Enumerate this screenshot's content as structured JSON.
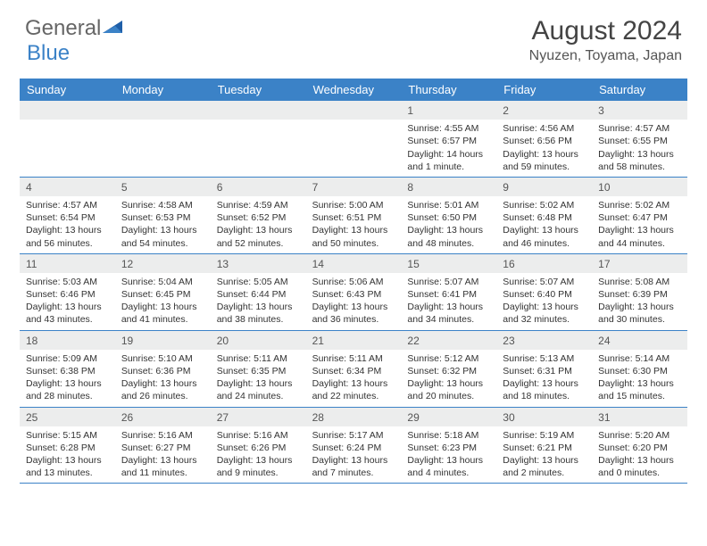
{
  "brand": {
    "part1": "General",
    "part2": "Blue"
  },
  "title": "August 2024",
  "location": "Nyuzen, Toyama, Japan",
  "colors": {
    "accent": "#3b82c7",
    "header_bg": "#3b82c7",
    "header_text": "#ffffff",
    "daynum_bg": "#eceded",
    "text": "#333333",
    "background": "#ffffff"
  },
  "dayNames": [
    "Sunday",
    "Monday",
    "Tuesday",
    "Wednesday",
    "Thursday",
    "Friday",
    "Saturday"
  ],
  "weeks": [
    [
      null,
      null,
      null,
      null,
      {
        "n": "1",
        "sr": "Sunrise: 4:55 AM",
        "ss": "Sunset: 6:57 PM",
        "dl": "Daylight: 14 hours and 1 minute."
      },
      {
        "n": "2",
        "sr": "Sunrise: 4:56 AM",
        "ss": "Sunset: 6:56 PM",
        "dl": "Daylight: 13 hours and 59 minutes."
      },
      {
        "n": "3",
        "sr": "Sunrise: 4:57 AM",
        "ss": "Sunset: 6:55 PM",
        "dl": "Daylight: 13 hours and 58 minutes."
      }
    ],
    [
      {
        "n": "4",
        "sr": "Sunrise: 4:57 AM",
        "ss": "Sunset: 6:54 PM",
        "dl": "Daylight: 13 hours and 56 minutes."
      },
      {
        "n": "5",
        "sr": "Sunrise: 4:58 AM",
        "ss": "Sunset: 6:53 PM",
        "dl": "Daylight: 13 hours and 54 minutes."
      },
      {
        "n": "6",
        "sr": "Sunrise: 4:59 AM",
        "ss": "Sunset: 6:52 PM",
        "dl": "Daylight: 13 hours and 52 minutes."
      },
      {
        "n": "7",
        "sr": "Sunrise: 5:00 AM",
        "ss": "Sunset: 6:51 PM",
        "dl": "Daylight: 13 hours and 50 minutes."
      },
      {
        "n": "8",
        "sr": "Sunrise: 5:01 AM",
        "ss": "Sunset: 6:50 PM",
        "dl": "Daylight: 13 hours and 48 minutes."
      },
      {
        "n": "9",
        "sr": "Sunrise: 5:02 AM",
        "ss": "Sunset: 6:48 PM",
        "dl": "Daylight: 13 hours and 46 minutes."
      },
      {
        "n": "10",
        "sr": "Sunrise: 5:02 AM",
        "ss": "Sunset: 6:47 PM",
        "dl": "Daylight: 13 hours and 44 minutes."
      }
    ],
    [
      {
        "n": "11",
        "sr": "Sunrise: 5:03 AM",
        "ss": "Sunset: 6:46 PM",
        "dl": "Daylight: 13 hours and 43 minutes."
      },
      {
        "n": "12",
        "sr": "Sunrise: 5:04 AM",
        "ss": "Sunset: 6:45 PM",
        "dl": "Daylight: 13 hours and 41 minutes."
      },
      {
        "n": "13",
        "sr": "Sunrise: 5:05 AM",
        "ss": "Sunset: 6:44 PM",
        "dl": "Daylight: 13 hours and 38 minutes."
      },
      {
        "n": "14",
        "sr": "Sunrise: 5:06 AM",
        "ss": "Sunset: 6:43 PM",
        "dl": "Daylight: 13 hours and 36 minutes."
      },
      {
        "n": "15",
        "sr": "Sunrise: 5:07 AM",
        "ss": "Sunset: 6:41 PM",
        "dl": "Daylight: 13 hours and 34 minutes."
      },
      {
        "n": "16",
        "sr": "Sunrise: 5:07 AM",
        "ss": "Sunset: 6:40 PM",
        "dl": "Daylight: 13 hours and 32 minutes."
      },
      {
        "n": "17",
        "sr": "Sunrise: 5:08 AM",
        "ss": "Sunset: 6:39 PM",
        "dl": "Daylight: 13 hours and 30 minutes."
      }
    ],
    [
      {
        "n": "18",
        "sr": "Sunrise: 5:09 AM",
        "ss": "Sunset: 6:38 PM",
        "dl": "Daylight: 13 hours and 28 minutes."
      },
      {
        "n": "19",
        "sr": "Sunrise: 5:10 AM",
        "ss": "Sunset: 6:36 PM",
        "dl": "Daylight: 13 hours and 26 minutes."
      },
      {
        "n": "20",
        "sr": "Sunrise: 5:11 AM",
        "ss": "Sunset: 6:35 PM",
        "dl": "Daylight: 13 hours and 24 minutes."
      },
      {
        "n": "21",
        "sr": "Sunrise: 5:11 AM",
        "ss": "Sunset: 6:34 PM",
        "dl": "Daylight: 13 hours and 22 minutes."
      },
      {
        "n": "22",
        "sr": "Sunrise: 5:12 AM",
        "ss": "Sunset: 6:32 PM",
        "dl": "Daylight: 13 hours and 20 minutes."
      },
      {
        "n": "23",
        "sr": "Sunrise: 5:13 AM",
        "ss": "Sunset: 6:31 PM",
        "dl": "Daylight: 13 hours and 18 minutes."
      },
      {
        "n": "24",
        "sr": "Sunrise: 5:14 AM",
        "ss": "Sunset: 6:30 PM",
        "dl": "Daylight: 13 hours and 15 minutes."
      }
    ],
    [
      {
        "n": "25",
        "sr": "Sunrise: 5:15 AM",
        "ss": "Sunset: 6:28 PM",
        "dl": "Daylight: 13 hours and 13 minutes."
      },
      {
        "n": "26",
        "sr": "Sunrise: 5:16 AM",
        "ss": "Sunset: 6:27 PM",
        "dl": "Daylight: 13 hours and 11 minutes."
      },
      {
        "n": "27",
        "sr": "Sunrise: 5:16 AM",
        "ss": "Sunset: 6:26 PM",
        "dl": "Daylight: 13 hours and 9 minutes."
      },
      {
        "n": "28",
        "sr": "Sunrise: 5:17 AM",
        "ss": "Sunset: 6:24 PM",
        "dl": "Daylight: 13 hours and 7 minutes."
      },
      {
        "n": "29",
        "sr": "Sunrise: 5:18 AM",
        "ss": "Sunset: 6:23 PM",
        "dl": "Daylight: 13 hours and 4 minutes."
      },
      {
        "n": "30",
        "sr": "Sunrise: 5:19 AM",
        "ss": "Sunset: 6:21 PM",
        "dl": "Daylight: 13 hours and 2 minutes."
      },
      {
        "n": "31",
        "sr": "Sunrise: 5:20 AM",
        "ss": "Sunset: 6:20 PM",
        "dl": "Daylight: 13 hours and 0 minutes."
      }
    ]
  ]
}
